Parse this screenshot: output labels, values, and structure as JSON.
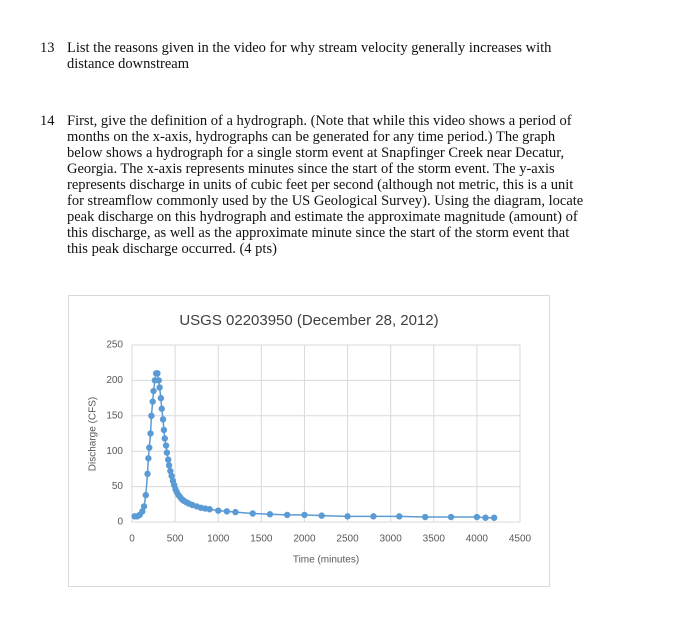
{
  "questions": [
    {
      "number": "13",
      "lines": [
        "List the reasons given in the video for why stream velocity generally increases with",
        "distance downstream"
      ]
    },
    {
      "number": "14",
      "lines": [
        "First, give the definition of a hydrograph. (Note that while this video shows a period of",
        "months on the x-axis, hydrographs can be generated for any time period.) The graph",
        "below shows a hydrograph for a single storm event at Snapfinger Creek near Decatur,",
        "Georgia. The x-axis represents minutes since the start of the storm event. The y-axis",
        "represents discharge in units of cubic feet per second (although not metric, this is a unit",
        "for streamflow commonly used by the US Geological Survey). Using the diagram, locate",
        "peak discharge on this hydrograph and estimate the approximate magnitude (amount) of",
        "this discharge, as well as the approximate minute since the start of the storm event that",
        "this peak discharge occurred. (4 pts)"
      ]
    }
  ],
  "chart_data": {
    "type": "line",
    "title": "USGS 02203950 (December 28, 2012)",
    "x_label": "Time (minutes)",
    "y_label": "Discharge (CFS)",
    "x": [
      30,
      60,
      90,
      120,
      140,
      160,
      180,
      190,
      200,
      215,
      225,
      240,
      250,
      265,
      280,
      295,
      310,
      320,
      335,
      345,
      360,
      370,
      380,
      395,
      405,
      420,
      430,
      445,
      460,
      475,
      490,
      505,
      520,
      540,
      560,
      580,
      600,
      630,
      660,
      700,
      750,
      800,
      850,
      900,
      1000,
      1100,
      1200,
      1400,
      1600,
      1800,
      2000,
      2200,
      2500,
      2800,
      3100,
      3400,
      3700,
      4000,
      4100,
      4200
    ],
    "series": [
      {
        "name": "Discharge",
        "color": "#5b9bd5",
        "values": [
          8,
          8,
          10,
          15,
          22,
          38,
          68,
          90,
          105,
          125,
          150,
          170,
          185,
          200,
          210,
          210,
          200,
          190,
          175,
          160,
          145,
          130,
          118,
          108,
          98,
          88,
          80,
          72,
          65,
          58,
          52,
          46,
          42,
          38,
          35,
          32,
          30,
          28,
          26,
          24,
          22,
          20,
          19,
          18,
          16,
          15,
          14,
          12,
          11,
          10,
          10,
          9,
          8,
          8,
          8,
          7,
          7,
          7,
          6,
          6
        ]
      }
    ],
    "xlim": [
      0,
      4500
    ],
    "xticks": [
      0,
      500,
      1000,
      1500,
      2000,
      2500,
      3000,
      3500,
      4000,
      4500
    ],
    "ylim": [
      0,
      250
    ],
    "yticks": [
      0,
      50,
      100,
      150,
      200,
      250
    ],
    "grid": true
  }
}
